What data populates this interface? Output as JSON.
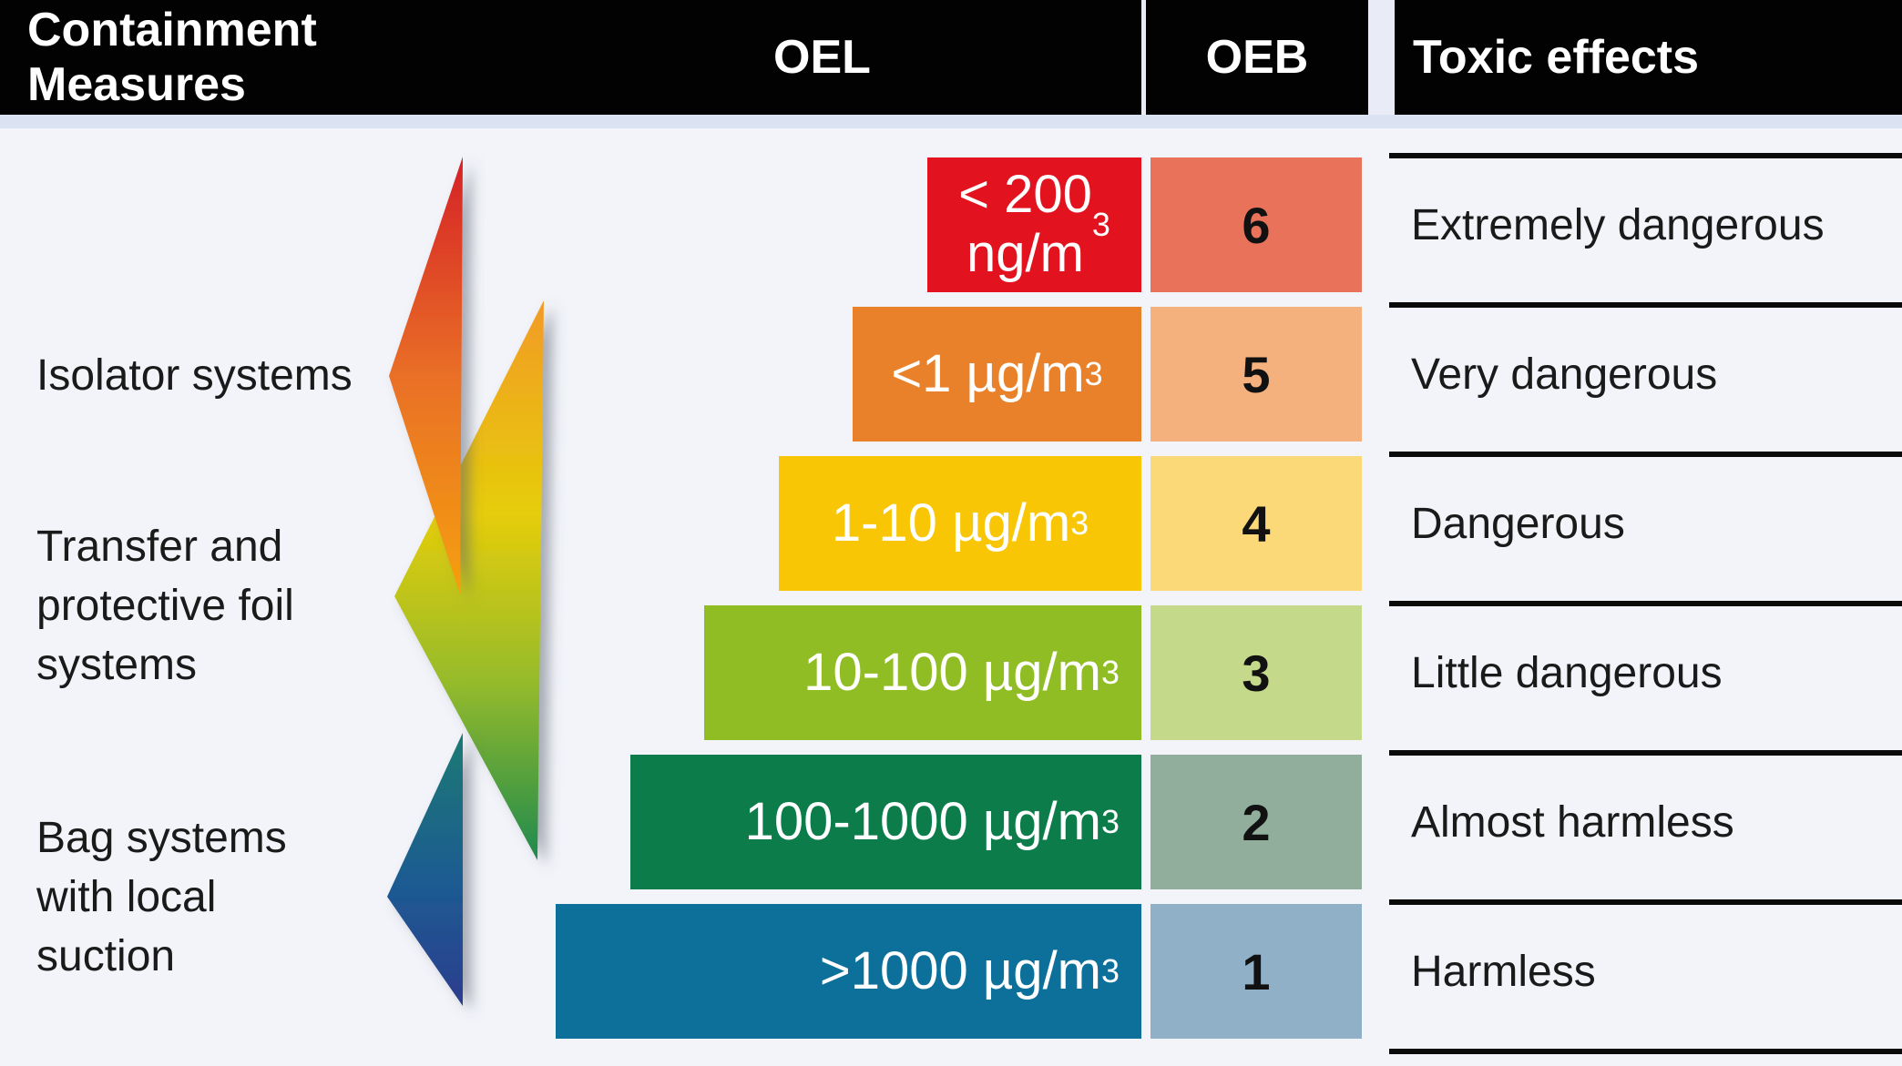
{
  "header": {
    "containment": "Containment\nMeasures",
    "oel": "OEL",
    "oeb": "OEB",
    "toxic": "Toxic effects"
  },
  "containment_measures": [
    {
      "label": "Isolator systems"
    },
    {
      "label": "Transfer and\nprotective foil\nsystems"
    },
    {
      "label": "Bag systems\nwith local\nsuction"
    }
  ],
  "rows": [
    {
      "oel": "< 200\nng/m³",
      "oeb": "6",
      "effect": "Extremely dangerous",
      "bar_color": "#e2131e",
      "oeb_color": "#e8735a"
    },
    {
      "oel": "<1 µg/m³",
      "oeb": "5",
      "effect": "Very dangerous",
      "bar_color": "#e9802a",
      "oeb_color": "#f4b17d"
    },
    {
      "oel": "1-10 µg/m³",
      "oeb": "4",
      "effect": "Dangerous",
      "bar_color": "#f9c605",
      "oeb_color": "#fbd978"
    },
    {
      "oel": "10-100 µg/m³",
      "oeb": "3",
      "effect": "Little dangerous",
      "bar_color": "#90bd23",
      "oeb_color": "#c5d98b"
    },
    {
      "oel": "100-1000 µg/m³",
      "oeb": "2",
      "effect": "Almost harmless",
      "bar_color": "#0b7c4a",
      "oeb_color": "#91ae9c"
    },
    {
      "oel": ">1000 µg/m³",
      "oeb": "1",
      "effect": "Harmless",
      "bar_color": "#0c709b",
      "oeb_color": "#90b0c8"
    }
  ],
  "arrows": [
    {
      "name": "isolator-systems-arrow",
      "stops": [
        "#d52027",
        "#e96f27",
        "#f5a00e"
      ]
    },
    {
      "name": "transfer-systems-arrow",
      "stops": [
        "#f29a26",
        "#e6cd0a",
        "#96bb2b",
        "#1e8a4d"
      ]
    },
    {
      "name": "bag-systems-arrow",
      "stops": [
        "#1e7a73",
        "#1d5b92",
        "#2c3d8e"
      ]
    }
  ],
  "colors": {
    "background": "#f2f4f9",
    "header_bg": "#020202",
    "strip": "#dbe2f1",
    "separator_line": "#0a0a0a"
  },
  "chart_data": {
    "type": "table",
    "title": "OEB / OEL containment banding",
    "columns": [
      "Containment Measures",
      "OEL",
      "OEB",
      "Toxic effects"
    ],
    "rows": [
      [
        "Isolator systems",
        "< 200 ng/m³",
        "6",
        "Extremely dangerous"
      ],
      [
        "Isolator systems",
        "<1 µg/m³",
        "5",
        "Very dangerous"
      ],
      [
        "Transfer and protective foil systems",
        "1-10 µg/m³",
        "4",
        "Dangerous"
      ],
      [
        "Transfer and protective foil systems",
        "10-100 µg/m³",
        "3",
        "Little dangerous"
      ],
      [
        "Bag systems with local suction",
        "100-1000 µg/m³",
        "2",
        "Almost harmless"
      ],
      [
        "Bag systems with local suction",
        ">1000 µg/m³",
        "1",
        "Harmless"
      ]
    ]
  }
}
